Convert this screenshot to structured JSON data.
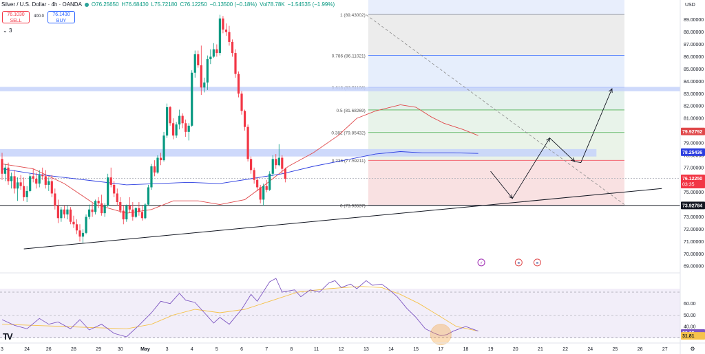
{
  "header": {
    "symbol": "Silver / U.S. Dollar · 4h · OANDA",
    "open": "O76.25650",
    "high": "H76.68430",
    "low": "L75.72180",
    "close": "C76.12250",
    "change": "−0.13500 (−0.18%)",
    "volume": "Vol78.78K",
    "vol_change": "−1.54535 (−1.99%)",
    "sell_price": "76.1030",
    "sell_label": "SELL",
    "spread": "400.0",
    "buy_price": "76.1430",
    "buy_label": "BUY",
    "collapse_label": "3",
    "currency": "USD"
  },
  "colors": {
    "up": "#089981",
    "down": "#f23645",
    "ma_red": "#e0484a",
    "ma_blue": "#2c3ee0",
    "rsi_line": "#7e57c2",
    "rsi_ma": "#f5c24a",
    "fib_top": "#e8eefc",
    "fib_green": "#e8f3ea",
    "fib_red": "#f9e1e2",
    "zone_blue": "#c5d2fa"
  },
  "chart_data": {
    "type": "candlestick",
    "title": "Silver / U.S. Dollar · 4h · OANDA",
    "y_axis": {
      "min": 68.4,
      "max": 90.6,
      "ticks": [
        "89.00000",
        "88.00000",
        "87.00000",
        "86.00000",
        "85.00000",
        "84.00000",
        "83.00000",
        "82.00000",
        "81.00000",
        "80.00000",
        "79.00000",
        "78.00000",
        "77.00000",
        "76.00000",
        "75.00000",
        "74.00000",
        "73.00000",
        "72.00000",
        "71.00000",
        "70.00000",
        "69.00000"
      ]
    },
    "x_axis": {
      "labels": [
        {
          "t": "3",
          "i": 0
        },
        {
          "t": "24",
          "i": 8
        },
        {
          "t": "26",
          "i": 15
        },
        {
          "t": "28",
          "i": 23
        },
        {
          "t": "29",
          "i": 31
        },
        {
          "t": "30",
          "i": 38
        },
        {
          "t": "May",
          "i": 46
        },
        {
          "t": "3",
          "i": 53
        },
        {
          "t": "4",
          "i": 61
        },
        {
          "t": "5",
          "i": 69
        },
        {
          "t": "6",
          "i": 77
        },
        {
          "t": "7",
          "i": 85
        },
        {
          "t": "8",
          "i": 93
        },
        {
          "t": "11",
          "i": 101
        },
        {
          "t": "12",
          "i": 109
        },
        {
          "t": "13",
          "i": 117
        },
        {
          "t": "14",
          "i": 125
        },
        {
          "t": "15",
          "i": 133
        },
        {
          "t": "17",
          "i": 141
        },
        {
          "t": "18",
          "i": 149
        },
        {
          "t": "19",
          "i": 157
        },
        {
          "t": "20",
          "i": 165
        },
        {
          "t": "21",
          "i": 173
        },
        {
          "t": "22",
          "i": 181
        },
        {
          "t": "24",
          "i": 189
        },
        {
          "t": "25",
          "i": 197
        },
        {
          "t": "26",
          "i": 205
        },
        {
          "t": "27",
          "i": 213
        },
        {
          "t": "28",
          "i": 221
        }
      ]
    },
    "candles": [
      [
        77.7,
        78.2,
        76.0,
        76.5
      ],
      [
        76.5,
        77.3,
        75.9,
        77.0
      ],
      [
        77.0,
        77.4,
        75.6,
        75.9
      ],
      [
        75.9,
        76.6,
        75.3,
        76.3
      ],
      [
        76.3,
        76.8,
        74.9,
        75.3
      ],
      [
        75.3,
        76.2,
        74.3,
        75.8
      ],
      [
        75.8,
        76.4,
        75.2,
        75.5
      ],
      [
        75.5,
        76.2,
        74.3,
        74.6
      ],
      [
        74.6,
        75.5,
        74.2,
        75.1
      ],
      [
        75.1,
        76.5,
        75.0,
        76.3
      ],
      [
        76.3,
        76.9,
        75.8,
        76.1
      ],
      [
        76.1,
        76.6,
        75.3,
        75.7
      ],
      [
        75.7,
        76.8,
        75.4,
        76.4
      ],
      [
        76.4,
        77.0,
        76.0,
        76.3
      ],
      [
        76.3,
        76.8,
        75.3,
        75.6
      ],
      [
        75.6,
        76.2,
        75.1,
        75.9
      ],
      [
        75.9,
        76.4,
        74.6,
        74.9
      ],
      [
        74.9,
        75.3,
        73.6,
        73.9
      ],
      [
        73.9,
        74.4,
        72.5,
        72.9
      ],
      [
        72.9,
        73.8,
        72.6,
        73.6
      ],
      [
        73.6,
        73.9,
        72.9,
        73.2
      ],
      [
        73.2,
        73.9,
        72.8,
        73.6
      ],
      [
        73.6,
        73.8,
        72.4,
        72.6
      ],
      [
        72.6,
        73.1,
        72.1,
        72.4
      ],
      [
        72.4,
        72.8,
        71.6,
        71.9
      ],
      [
        71.9,
        72.4,
        71.0,
        71.4
      ],
      [
        71.4,
        72.0,
        70.9,
        71.7
      ],
      [
        71.7,
        73.2,
        71.6,
        73.0
      ],
      [
        73.0,
        74.0,
        72.8,
        73.6
      ],
      [
        73.6,
        74.1,
        73.0,
        73.4
      ],
      [
        73.4,
        74.4,
        73.2,
        74.3
      ],
      [
        74.3,
        74.6,
        73.7,
        74.1
      ],
      [
        74.1,
        74.8,
        73.1,
        73.3
      ],
      [
        73.3,
        74.1,
        73.0,
        73.9
      ],
      [
        73.9,
        76.5,
        73.8,
        76.2
      ],
      [
        76.2,
        77.0,
        75.4,
        75.6
      ],
      [
        75.6,
        75.9,
        74.6,
        74.9
      ],
      [
        74.9,
        75.3,
        73.9,
        74.2
      ],
      [
        74.2,
        74.6,
        73.3,
        73.5
      ],
      [
        73.5,
        73.9,
        72.4,
        72.8
      ],
      [
        72.8,
        74.0,
        72.6,
        73.9
      ],
      [
        73.9,
        74.6,
        73.3,
        73.6
      ],
      [
        73.6,
        74.2,
        72.7,
        73.0
      ],
      [
        73.0,
        73.8,
        72.9,
        73.7
      ],
      [
        73.7,
        74.2,
        73.1,
        73.4
      ],
      [
        73.4,
        73.9,
        72.7,
        72.9
      ],
      [
        72.9,
        74.1,
        72.8,
        74.0
      ],
      [
        74.0,
        75.6,
        73.9,
        75.4
      ],
      [
        75.4,
        77.3,
        75.2,
        77.1
      ],
      [
        77.1,
        77.6,
        76.3,
        76.6
      ],
      [
        76.6,
        78.0,
        76.5,
        77.8
      ],
      [
        77.8,
        78.2,
        77.2,
        77.6
      ],
      [
        77.6,
        79.9,
        77.5,
        79.6
      ],
      [
        79.6,
        82.2,
        79.4,
        81.9
      ],
      [
        81.9,
        82.0,
        80.4,
        80.6
      ],
      [
        80.6,
        81.0,
        79.3,
        79.6
      ],
      [
        79.6,
        80.7,
        79.4,
        80.5
      ],
      [
        80.5,
        81.7,
        80.1,
        81.2
      ],
      [
        81.2,
        81.4,
        80.2,
        80.6
      ],
      [
        80.6,
        80.9,
        79.5,
        79.9
      ],
      [
        79.9,
        80.6,
        79.2,
        80.4
      ],
      [
        80.4,
        84.9,
        80.3,
        84.7
      ],
      [
        84.7,
        86.5,
        84.3,
        86.2
      ],
      [
        86.2,
        86.5,
        85.1,
        85.3
      ],
      [
        85.3,
        86.9,
        82.9,
        83.5
      ],
      [
        83.5,
        84.3,
        83.1,
        83.9
      ],
      [
        83.9,
        86.1,
        83.3,
        85.8
      ],
      [
        85.8,
        86.6,
        85.4,
        86.0
      ],
      [
        86.0,
        87.1,
        85.9,
        86.6
      ],
      [
        86.6,
        87.0,
        86.0,
        86.3
      ],
      [
        86.3,
        89.4,
        86.1,
        89.1
      ],
      [
        89.1,
        89.3,
        87.9,
        88.2
      ],
      [
        88.2,
        88.7,
        87.7,
        88.0
      ],
      [
        88.0,
        88.5,
        86.9,
        87.2
      ],
      [
        87.2,
        87.4,
        86.0,
        86.3
      ],
      [
        86.3,
        86.6,
        84.3,
        84.6
      ],
      [
        84.6,
        84.8,
        82.7,
        83.0
      ],
      [
        83.0,
        83.2,
        81.3,
        81.6
      ],
      [
        81.6,
        81.7,
        80.0,
        80.3
      ],
      [
        80.3,
        80.5,
        77.5,
        77.7
      ],
      [
        77.7,
        77.9,
        76.5,
        76.8
      ],
      [
        76.8,
        77.0,
        75.7,
        76.0
      ],
      [
        76.0,
        76.2,
        75.1,
        75.4
      ],
      [
        75.4,
        75.6,
        74.1,
        74.4
      ],
      [
        74.4,
        75.7,
        73.9,
        75.5
      ],
      [
        75.5,
        76.0,
        75.0,
        75.2
      ],
      [
        75.2,
        76.7,
        75.1,
        76.5
      ],
      [
        76.5,
        78.0,
        76.3,
        77.7
      ],
      [
        77.7,
        78.1,
        76.9,
        77.2
      ],
      [
        77.2,
        78.9,
        77.1,
        77.8
      ],
      [
        77.8,
        78.0,
        76.5,
        76.9
      ],
      [
        76.9,
        77.0,
        75.8,
        76.1
      ]
    ],
    "current_price": 76.1225,
    "current_price_label": "76.12250",
    "countdown": "03:35",
    "ma_red_label": "79.92792",
    "ma_blue_label": "78.25436",
    "support_label": "73.92784",
    "support_level": 73.92784,
    "ma_red": [
      [
        0,
        77.3
      ],
      [
        10,
        76.9
      ],
      [
        20,
        75.7
      ],
      [
        30,
        74.0
      ],
      [
        40,
        73.3
      ],
      [
        48,
        73.6
      ],
      [
        55,
        74.3
      ],
      [
        63,
        74.3
      ],
      [
        70,
        74.0
      ],
      [
        78,
        74.4
      ],
      [
        85,
        75.7
      ],
      [
        92,
        77.1
      ],
      [
        100,
        78.2
      ],
      [
        108,
        79.6
      ],
      [
        114,
        81.0
      ],
      [
        120,
        81.6
      ],
      [
        128,
        82.1
      ],
      [
        133,
        81.9
      ],
      [
        138,
        81.1
      ],
      [
        142,
        80.6
      ],
      [
        148,
        80.1
      ],
      [
        153,
        79.6
      ]
    ],
    "ma_blue": [
      [
        0,
        76.9
      ],
      [
        10,
        76.5
      ],
      [
        20,
        76.2
      ],
      [
        30,
        75.9
      ],
      [
        40,
        75.6
      ],
      [
        50,
        75.7
      ],
      [
        60,
        75.8
      ],
      [
        70,
        75.7
      ],
      [
        80,
        76.1
      ],
      [
        90,
        76.5
      ],
      [
        100,
        77.1
      ],
      [
        110,
        77.6
      ],
      [
        120,
        78.1
      ],
      [
        128,
        78.3
      ],
      [
        135,
        78.2
      ],
      [
        145,
        78.2
      ],
      [
        153,
        78.15
      ]
    ],
    "fibonacci": {
      "levels": [
        {
          "ratio": "1",
          "price": "89.43002",
          "value": 89.43
        },
        {
          "ratio": "0.786",
          "price": "86.11021",
          "value": 86.11
        },
        {
          "ratio": "0.618",
          "price": "83.51106",
          "value": 83.51
        },
        {
          "ratio": "0.5",
          "price": "81.68269",
          "value": 81.68
        },
        {
          "ratio": "0.382",
          "price": "79.85432",
          "value": 79.85
        },
        {
          "ratio": "0.236",
          "price": "77.59211",
          "value": 77.59
        },
        {
          "ratio": "0",
          "price": "73.93537",
          "value": 73.94
        }
      ],
      "start_index": 117,
      "end_index": 200
    },
    "zones": [
      {
        "from": 83.2,
        "to": 83.55
      },
      {
        "from": 77.9,
        "to": 78.5
      }
    ],
    "trendline": {
      "p1": [
        7,
        70.4
      ],
      "p2": [
        212,
        75.3
      ]
    },
    "diagonal": {
      "p1": [
        117,
        89.4
      ],
      "p2": [
        200,
        74.0
      ]
    },
    "projection": [
      [
        157,
        76.7
      ],
      [
        164,
        74.5
      ],
      [
        176,
        79.4
      ],
      [
        184,
        77.5
      ],
      [
        186,
        77.4
      ],
      [
        196,
        83.4
      ]
    ],
    "events": [
      154,
      166,
      172
    ],
    "rsi": {
      "labels": [
        "60.00",
        "50.00",
        "40.00"
      ],
      "ylim": [
        28,
        85
      ],
      "current_label": "33.95",
      "ma_label": "31.81",
      "overbought": 70,
      "oversold": 30,
      "values": [
        [
          0,
          46
        ],
        [
          4,
          41
        ],
        [
          8,
          38
        ],
        [
          12,
          47
        ],
        [
          15,
          42
        ],
        [
          18,
          44
        ],
        [
          22,
          38
        ],
        [
          25,
          46
        ],
        [
          28,
          37
        ],
        [
          32,
          42
        ],
        [
          36,
          34
        ],
        [
          40,
          31
        ],
        [
          44,
          41
        ],
        [
          48,
          52
        ],
        [
          51,
          62
        ],
        [
          54,
          60
        ],
        [
          57,
          69
        ],
        [
          59,
          63
        ],
        [
          62,
          61
        ],
        [
          65,
          52
        ],
        [
          68,
          43
        ],
        [
          70,
          48
        ],
        [
          73,
          42
        ],
        [
          77,
          55
        ],
        [
          80,
          68
        ],
        [
          82,
          62
        ],
        [
          86,
          79
        ],
        [
          88,
          82
        ],
        [
          90,
          70
        ],
        [
          94,
          72
        ],
        [
          96,
          66
        ],
        [
          99,
          72
        ],
        [
          102,
          70
        ],
        [
          105,
          78
        ],
        [
          107,
          80
        ],
        [
          109,
          74
        ],
        [
          112,
          77
        ],
        [
          114,
          73
        ],
        [
          117,
          80
        ],
        [
          119,
          76
        ],
        [
          122,
          77
        ],
        [
          124,
          73
        ],
        [
          127,
          66
        ],
        [
          130,
          56
        ],
        [
          133,
          48
        ],
        [
          136,
          38
        ],
        [
          139,
          34
        ],
        [
          141,
          32
        ],
        [
          143,
          33
        ],
        [
          145,
          36
        ],
        [
          147,
          38
        ],
        [
          149,
          40
        ],
        [
          151,
          38
        ],
        [
          153,
          36
        ]
      ],
      "ma_values": [
        [
          0,
          42
        ],
        [
          10,
          41
        ],
        [
          20,
          40
        ],
        [
          30,
          39
        ],
        [
          40,
          38
        ],
        [
          48,
          42
        ],
        [
          55,
          50
        ],
        [
          62,
          55
        ],
        [
          70,
          52
        ],
        [
          78,
          55
        ],
        [
          86,
          62
        ],
        [
          95,
          70
        ],
        [
          105,
          73
        ],
        [
          115,
          75
        ],
        [
          122,
          74
        ],
        [
          128,
          68
        ],
        [
          134,
          60
        ],
        [
          140,
          50
        ],
        [
          146,
          40
        ],
        [
          153,
          36
        ]
      ]
    }
  }
}
